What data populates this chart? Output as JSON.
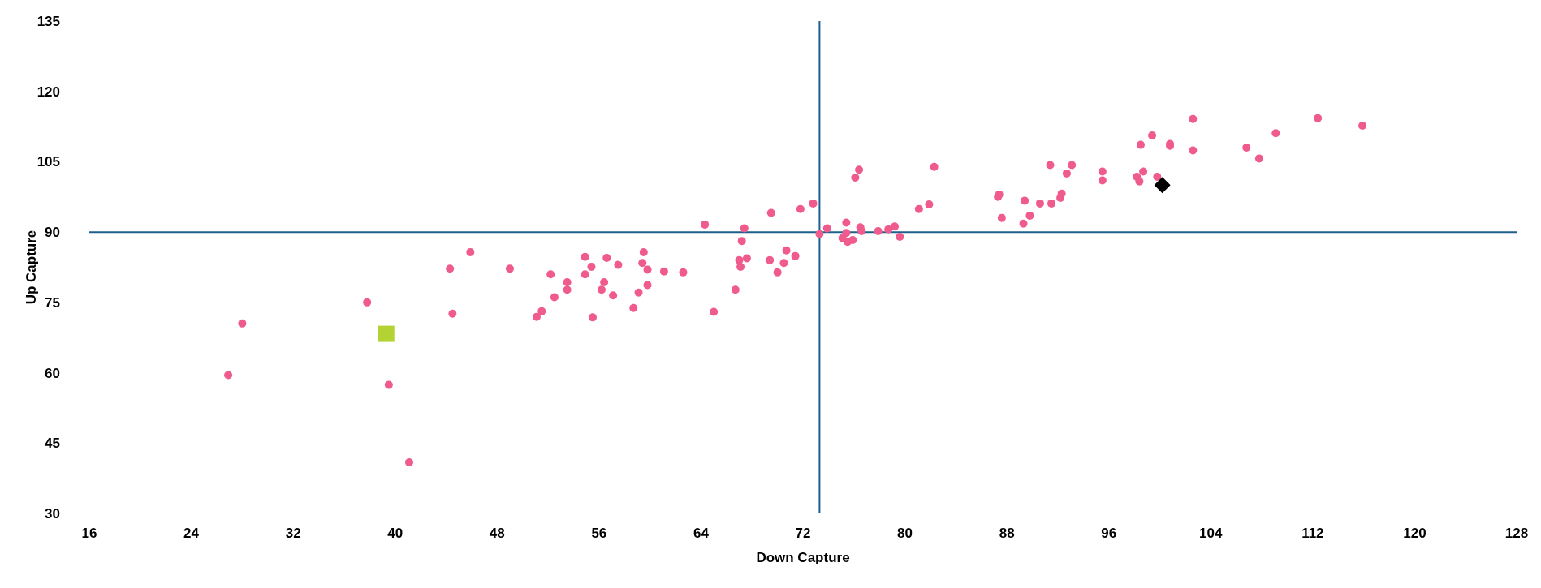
{
  "chart_data": {
    "type": "scatter",
    "xlabel": "Down Capture",
    "ylabel": "Up Capture",
    "xlim": [
      16,
      128
    ],
    "xticks": [
      16,
      24,
      32,
      40,
      48,
      56,
      64,
      72,
      80,
      88,
      96,
      104,
      112,
      120,
      128
    ],
    "ylim": [
      30,
      135
    ],
    "yticks": [
      30,
      45,
      60,
      75,
      90,
      105,
      120,
      135
    ],
    "grid": false,
    "legend": false,
    "ref_lines": [
      {
        "axis": "x",
        "value": 73.3,
        "color": "#1f5f8b"
      },
      {
        "axis": "y",
        "value": 90,
        "color": "#1f5f8b"
      }
    ],
    "series": [
      {
        "color": "#ef5b8c",
        "marker": "circle",
        "x": [
          26.9,
          28.0,
          37.8,
          39.5,
          41.1,
          44.3,
          44.5,
          45.9,
          49.0,
          51.1,
          51.5,
          52.2,
          52.5,
          53.5,
          53.5,
          54.9,
          54.9,
          55.4,
          55.5,
          56.2,
          56.4,
          56.6,
          57.1,
          57.5,
          58.7,
          59.1,
          59.4,
          59.5,
          59.8,
          59.8,
          61.1,
          62.6,
          64.3,
          65.0,
          66.7,
          67.0,
          67.1,
          67.2,
          67.4,
          67.6,
          69.5,
          69.4,
          70.0,
          70.5,
          70.7,
          71.4,
          71.8,
          72.8,
          73.3,
          73.9,
          75.1,
          75.4,
          75.4,
          75.5,
          75.9,
          76.1,
          76.4,
          76.5,
          76.6,
          77.9,
          78.7,
          79.2,
          79.6,
          81.1,
          81.9,
          82.3,
          87.3,
          87.4,
          87.6,
          89.3,
          89.4,
          89.8,
          90.6,
          91.4,
          91.5,
          92.2,
          92.3,
          92.7,
          93.1,
          95.5,
          95.5,
          98.2,
          98.4,
          98.5,
          98.7,
          99.4,
          99.8,
          100.8,
          100.8,
          102.6,
          102.6,
          106.8,
          107.8,
          109.1,
          112.4,
          115.9
        ],
        "values": [
          59.5,
          70.5,
          75.0,
          57.4,
          40.9,
          82.2,
          72.6,
          85.7,
          82.2,
          71.9,
          73.1,
          81.0,
          76.1,
          79.3,
          77.7,
          84.7,
          81.0,
          82.6,
          71.8,
          77.7,
          79.3,
          84.5,
          76.5,
          83.0,
          73.8,
          77.1,
          83.4,
          85.7,
          78.7,
          82.0,
          81.6,
          81.4,
          91.6,
          73.0,
          77.7,
          84.0,
          82.6,
          88.1,
          90.8,
          84.4,
          94.1,
          84.0,
          81.4,
          83.4,
          86.1,
          84.9,
          94.9,
          96.1,
          89.6,
          90.8,
          88.7,
          89.8,
          92.0,
          87.9,
          88.3,
          101.6,
          103.3,
          91.0,
          90.2,
          90.2,
          90.6,
          91.2,
          89.0,
          94.9,
          95.9,
          103.9,
          97.5,
          98.0,
          93.0,
          91.8,
          96.7,
          93.5,
          96.1,
          104.3,
          96.1,
          97.3,
          98.2,
          102.5,
          104.3,
          102.9,
          101.0,
          101.8,
          100.8,
          108.6,
          102.9,
          110.6,
          101.8,
          108.8,
          108.4,
          114.1,
          107.4,
          108.0,
          105.7,
          111.1,
          114.3,
          112.7
        ]
      },
      {
        "color": "#b3d335",
        "marker": "square",
        "x": [
          39.3
        ],
        "values": [
          68.3
        ]
      },
      {
        "color": "#000000",
        "marker": "diamond",
        "x": [
          100.2
        ],
        "values": [
          100.0
        ]
      }
    ]
  }
}
